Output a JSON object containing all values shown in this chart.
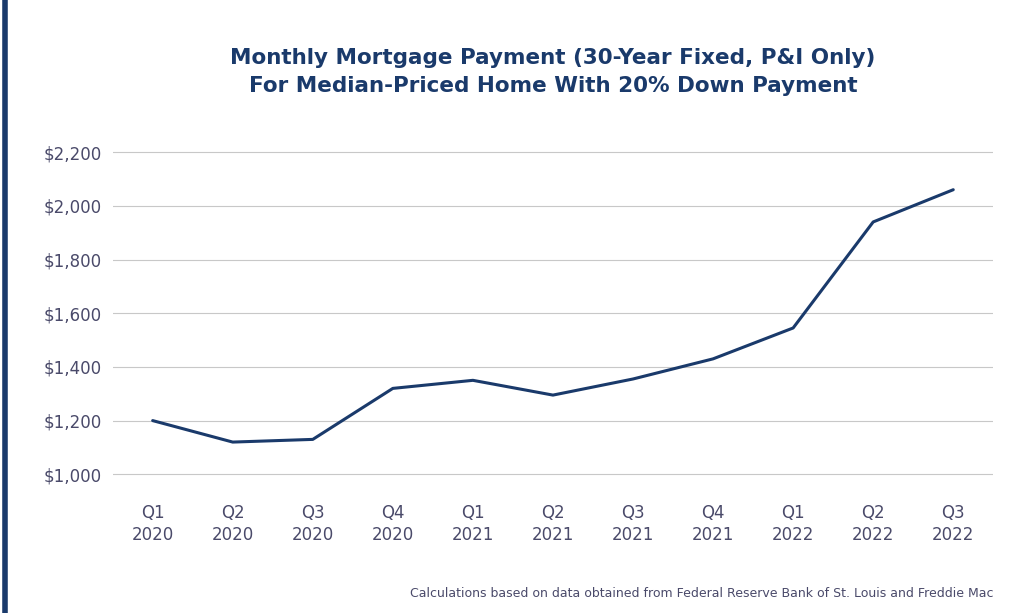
{
  "title_line1": "Monthly Mortgage Payment (30-Year Fixed, P&I Only)",
  "title_line2": "For Median-Priced Home With 20% Down Payment",
  "footnote": "Calculations based on data obtained from Federal Reserve Bank of St. Louis and Freddie Mac",
  "x_labels": [
    "Q1\n2020",
    "Q2\n2020",
    "Q3\n2020",
    "Q4\n2020",
    "Q1\n2021",
    "Q2\n2021",
    "Q3\n2021",
    "Q4\n2021",
    "Q1\n2022",
    "Q2\n2022",
    "Q3\n2022"
  ],
  "values": [
    1200,
    1120,
    1130,
    1320,
    1350,
    1295,
    1355,
    1430,
    1545,
    1940,
    2060
  ],
  "line_color": "#1a3a6b",
  "line_width": 2.2,
  "background_color": "#ffffff",
  "grid_color": "#c8c8c8",
  "title_color": "#1a3a6b",
  "ylabel_values": [
    1000,
    1200,
    1400,
    1600,
    1800,
    2000,
    2200
  ],
  "ylim": [
    940,
    2310
  ],
  "title_fontsize": 15.5,
  "footnote_fontsize": 9,
  "tick_fontsize": 12,
  "tick_color": "#4a4a6a",
  "border_color": "#1a3a6b",
  "border_width": 4
}
